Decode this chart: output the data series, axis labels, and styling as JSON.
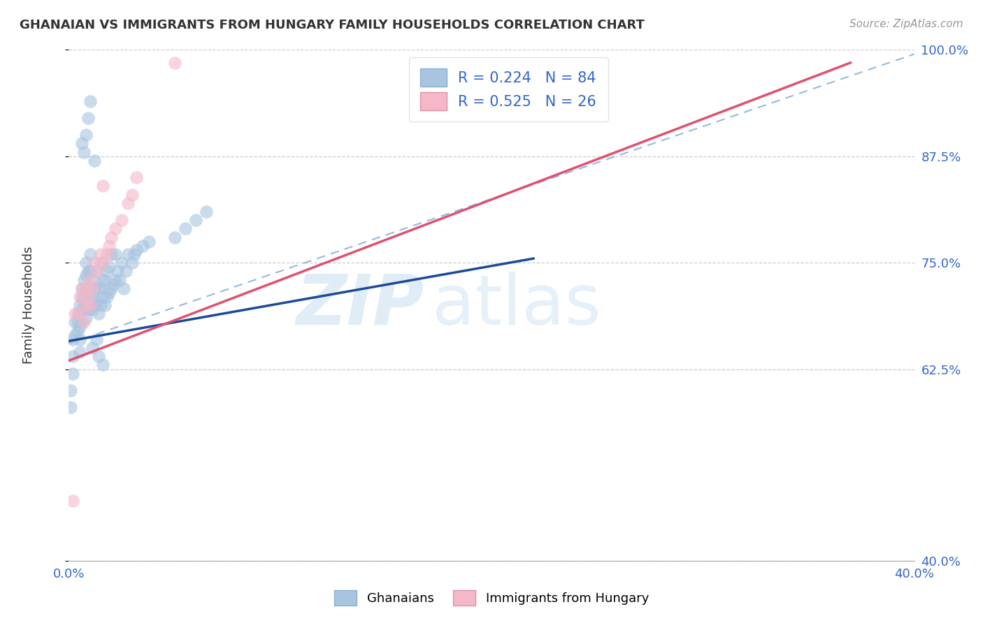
{
  "title": "GHANAIAN VS IMMIGRANTS FROM HUNGARY FAMILY HOUSEHOLDS CORRELATION CHART",
  "source_text": "Source: ZipAtlas.com",
  "ylabel": "Family Households",
  "watermark_zip": "ZIP",
  "watermark_atlas": "atlas",
  "legend_blue_label": "R = 0.224   N = 84",
  "legend_pink_label": "R = 0.525   N = 26",
  "legend_ghanaians": "Ghanaians",
  "legend_hungary": "Immigrants from Hungary",
  "blue_color": "#a8c4e0",
  "pink_color": "#f4b8c8",
  "blue_line_color": "#1a4a9a",
  "blue_dash_color": "#7aaad0",
  "pink_line_color": "#e05070",
  "dashed_line_color": "#aaaaaa",
  "x_min": 0.0,
  "x_max": 0.4,
  "y_min": 0.4,
  "y_max": 1.0,
  "x_ticks": [
    0.0,
    0.05,
    0.1,
    0.15,
    0.2,
    0.25,
    0.3,
    0.35,
    0.4
  ],
  "y_ticks": [
    0.4,
    0.625,
    0.75,
    0.875,
    1.0
  ],
  "y_tick_labels": [
    "40.0%",
    "62.5%",
    "75.0%",
    "87.5%",
    "100.0%"
  ],
  "blue_x": [
    0.005,
    0.005,
    0.005,
    0.005,
    0.005,
    0.006,
    0.006,
    0.006,
    0.006,
    0.007,
    0.007,
    0.007,
    0.008,
    0.008,
    0.008,
    0.008,
    0.008,
    0.009,
    0.009,
    0.009,
    0.01,
    0.01,
    0.01,
    0.01,
    0.011,
    0.011,
    0.011,
    0.012,
    0.012,
    0.013,
    0.013,
    0.014,
    0.014,
    0.015,
    0.015,
    0.015,
    0.016,
    0.016,
    0.017,
    0.017,
    0.018,
    0.018,
    0.019,
    0.019,
    0.02,
    0.02,
    0.021,
    0.022,
    0.022,
    0.023,
    0.024,
    0.025,
    0.026,
    0.027,
    0.028,
    0.03,
    0.031,
    0.032,
    0.035,
    0.038,
    0.003,
    0.003,
    0.004,
    0.004,
    0.004,
    0.002,
    0.002,
    0.002,
    0.001,
    0.001,
    0.05,
    0.055,
    0.06,
    0.065,
    0.012,
    0.007,
    0.006,
    0.008,
    0.009,
    0.01,
    0.011,
    0.013,
    0.014,
    0.016
  ],
  "blue_y": [
    0.69,
    0.675,
    0.66,
    0.645,
    0.7,
    0.68,
    0.72,
    0.695,
    0.71,
    0.705,
    0.715,
    0.73,
    0.685,
    0.7,
    0.72,
    0.735,
    0.75,
    0.695,
    0.71,
    0.74,
    0.7,
    0.72,
    0.74,
    0.76,
    0.695,
    0.71,
    0.73,
    0.7,
    0.72,
    0.705,
    0.74,
    0.69,
    0.72,
    0.7,
    0.72,
    0.75,
    0.71,
    0.73,
    0.7,
    0.73,
    0.71,
    0.74,
    0.715,
    0.745,
    0.72,
    0.76,
    0.725,
    0.73,
    0.76,
    0.74,
    0.73,
    0.75,
    0.72,
    0.74,
    0.76,
    0.75,
    0.76,
    0.765,
    0.77,
    0.775,
    0.665,
    0.68,
    0.67,
    0.69,
    0.68,
    0.66,
    0.64,
    0.62,
    0.6,
    0.58,
    0.78,
    0.79,
    0.8,
    0.81,
    0.87,
    0.88,
    0.89,
    0.9,
    0.92,
    0.94,
    0.65,
    0.66,
    0.64,
    0.63
  ],
  "pink_x": [
    0.002,
    0.003,
    0.005,
    0.005,
    0.006,
    0.007,
    0.008,
    0.008,
    0.009,
    0.01,
    0.01,
    0.011,
    0.012,
    0.013,
    0.015,
    0.016,
    0.018,
    0.019,
    0.02,
    0.022,
    0.025,
    0.028,
    0.03,
    0.032,
    0.05,
    0.016
  ],
  "pink_y": [
    0.47,
    0.69,
    0.69,
    0.71,
    0.72,
    0.68,
    0.7,
    0.72,
    0.71,
    0.7,
    0.73,
    0.72,
    0.75,
    0.74,
    0.76,
    0.75,
    0.76,
    0.77,
    0.78,
    0.79,
    0.8,
    0.82,
    0.83,
    0.85,
    0.985,
    0.84
  ],
  "blue_line_x0": 0.0,
  "blue_line_y0": 0.658,
  "blue_line_x1": 0.22,
  "blue_line_y1": 0.755,
  "pink_line_x0": 0.0,
  "pink_line_y0": 0.635,
  "pink_line_x1": 0.37,
  "pink_line_y1": 0.985,
  "ref_line_x0": 0.0,
  "ref_line_y0": 0.655,
  "ref_line_x1": 0.4,
  "ref_line_y1": 0.995
}
